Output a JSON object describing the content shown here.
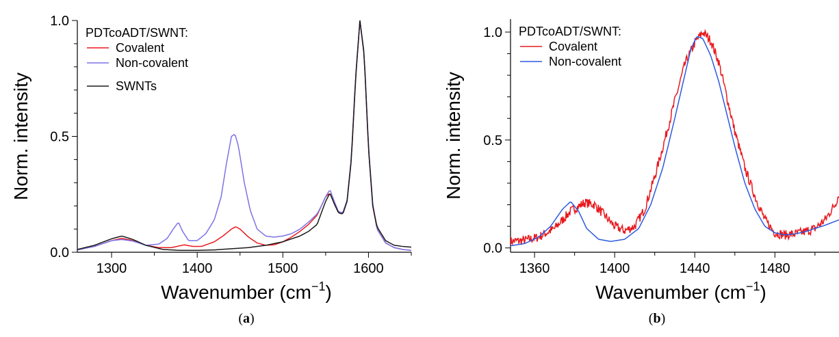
{
  "chart_data": [
    {
      "type": "line",
      "panel_label": "a",
      "xlabel": "Wavenumber (cm",
      "xlabel_sup": "−1",
      "xlabel_close": ")",
      "ylabel": "Norm. intensity",
      "xlim": [
        1260,
        1650
      ],
      "ylim": [
        0,
        1.0
      ],
      "xticks": [
        1300,
        1400,
        1500,
        1600
      ],
      "yticks": [
        0.0,
        0.5,
        1.0
      ],
      "ytick_labels": [
        "0.0",
        "0.5",
        "1.0"
      ],
      "legend_title": "PDTcoADT/SWNT:",
      "legend_position": "top-left",
      "series": [
        {
          "name": "Covalent",
          "color": "#e8191e",
          "x": [
            1260,
            1280,
            1300,
            1312,
            1325,
            1340,
            1355,
            1370,
            1385,
            1395,
            1405,
            1420,
            1430,
            1440,
            1445,
            1450,
            1460,
            1470,
            1480,
            1490,
            1500,
            1510,
            1520,
            1530,
            1540,
            1545,
            1550,
            1555,
            1560,
            1565,
            1570,
            1575,
            1580,
            1585,
            1590,
            1595,
            1600,
            1605,
            1610,
            1620,
            1630,
            1640,
            1650
          ],
          "y": [
            0.01,
            0.025,
            0.05,
            0.06,
            0.05,
            0.03,
            0.02,
            0.02,
            0.032,
            0.025,
            0.025,
            0.045,
            0.07,
            0.1,
            0.11,
            0.1,
            0.065,
            0.04,
            0.03,
            0.032,
            0.045,
            0.065,
            0.09,
            0.12,
            0.16,
            0.2,
            0.24,
            0.255,
            0.21,
            0.17,
            0.165,
            0.22,
            0.4,
            0.75,
            1.0,
            0.85,
            0.45,
            0.2,
            0.1,
            0.04,
            0.02,
            0.012,
            0.008
          ]
        },
        {
          "name": "Non-covalent",
          "color": "#7b72e6",
          "x": [
            1260,
            1280,
            1300,
            1312,
            1325,
            1340,
            1355,
            1365,
            1372,
            1378,
            1383,
            1390,
            1400,
            1410,
            1420,
            1428,
            1434,
            1440,
            1444,
            1448,
            1455,
            1462,
            1470,
            1480,
            1490,
            1500,
            1510,
            1520,
            1530,
            1540,
            1545,
            1550,
            1555,
            1560,
            1565,
            1570,
            1575,
            1580,
            1585,
            1590,
            1595,
            1600,
            1605,
            1610,
            1620,
            1630,
            1640,
            1650
          ],
          "y": [
            0.01,
            0.025,
            0.05,
            0.055,
            0.048,
            0.03,
            0.035,
            0.06,
            0.1,
            0.13,
            0.09,
            0.05,
            0.05,
            0.08,
            0.14,
            0.24,
            0.38,
            0.5,
            0.51,
            0.46,
            0.3,
            0.18,
            0.1,
            0.07,
            0.065,
            0.07,
            0.08,
            0.1,
            0.13,
            0.165,
            0.2,
            0.24,
            0.27,
            0.22,
            0.175,
            0.17,
            0.225,
            0.41,
            0.76,
            1.0,
            0.86,
            0.46,
            0.21,
            0.1,
            0.04,
            0.02,
            0.012,
            0.008
          ]
        },
        {
          "name": "SWNTs",
          "color": "#1a1a1a",
          "x": [
            1260,
            1280,
            1300,
            1312,
            1325,
            1340,
            1360,
            1380,
            1400,
            1420,
            1440,
            1460,
            1480,
            1500,
            1520,
            1530,
            1540,
            1545,
            1550,
            1555,
            1560,
            1565,
            1570,
            1575,
            1580,
            1585,
            1590,
            1595,
            1600,
            1605,
            1610,
            1620,
            1630,
            1640,
            1650
          ],
          "y": [
            0.012,
            0.03,
            0.058,
            0.07,
            0.055,
            0.03,
            0.012,
            0.008,
            0.008,
            0.01,
            0.015,
            0.02,
            0.03,
            0.045,
            0.07,
            0.09,
            0.12,
            0.17,
            0.22,
            0.255,
            0.21,
            0.17,
            0.165,
            0.22,
            0.4,
            0.75,
            1.0,
            0.85,
            0.45,
            0.2,
            0.11,
            0.05,
            0.03,
            0.025,
            0.022
          ]
        }
      ]
    },
    {
      "type": "line",
      "panel_label": "b",
      "xlabel": "Wavenumber (cm",
      "xlabel_sup": "−1",
      "xlabel_close": ")",
      "ylabel": "Norm. intensity",
      "xlim": [
        1348,
        1512
      ],
      "ylim": [
        -0.02,
        1.06
      ],
      "xticks": [
        1360,
        1400,
        1440,
        1480
      ],
      "yticks": [
        0.0,
        0.5,
        1.0
      ],
      "ytick_labels": [
        "0.0",
        "0.5",
        "1.0"
      ],
      "legend_title": "PDTcoADT/SWNT:",
      "legend_position": "top-left",
      "series": [
        {
          "name": "Covalent",
          "color": "#e8191e",
          "noise": 0.022,
          "x": [
            1348,
            1355,
            1362,
            1370,
            1378,
            1385,
            1390,
            1395,
            1400,
            1405,
            1410,
            1415,
            1420,
            1425,
            1430,
            1435,
            1440,
            1444,
            1448,
            1452,
            1456,
            1460,
            1465,
            1470,
            1475,
            1480,
            1485,
            1490,
            1495,
            1500,
            1505,
            1510,
            1512
          ],
          "y": [
            0.03,
            0.035,
            0.05,
            0.09,
            0.17,
            0.21,
            0.2,
            0.15,
            0.1,
            0.08,
            0.1,
            0.18,
            0.33,
            0.5,
            0.68,
            0.85,
            0.95,
            1.0,
            0.96,
            0.86,
            0.7,
            0.54,
            0.37,
            0.24,
            0.13,
            0.07,
            0.06,
            0.065,
            0.075,
            0.09,
            0.13,
            0.2,
            0.25
          ]
        },
        {
          "name": "Non-covalent",
          "color": "#2b59e0",
          "noise": 0,
          "x": [
            1348,
            1355,
            1362,
            1368,
            1374,
            1378,
            1382,
            1386,
            1392,
            1398,
            1405,
            1412,
            1418,
            1424,
            1430,
            1435,
            1438,
            1441,
            1444,
            1448,
            1452,
            1456,
            1460,
            1465,
            1470,
            1475,
            1480,
            1485,
            1490,
            1495,
            1500,
            1505,
            1512
          ],
          "y": [
            0.01,
            0.02,
            0.05,
            0.1,
            0.18,
            0.215,
            0.17,
            0.09,
            0.04,
            0.03,
            0.04,
            0.09,
            0.2,
            0.37,
            0.6,
            0.8,
            0.92,
            0.98,
            0.97,
            0.89,
            0.77,
            0.62,
            0.47,
            0.3,
            0.18,
            0.1,
            0.07,
            0.06,
            0.065,
            0.075,
            0.09,
            0.105,
            0.13
          ]
        }
      ]
    }
  ]
}
